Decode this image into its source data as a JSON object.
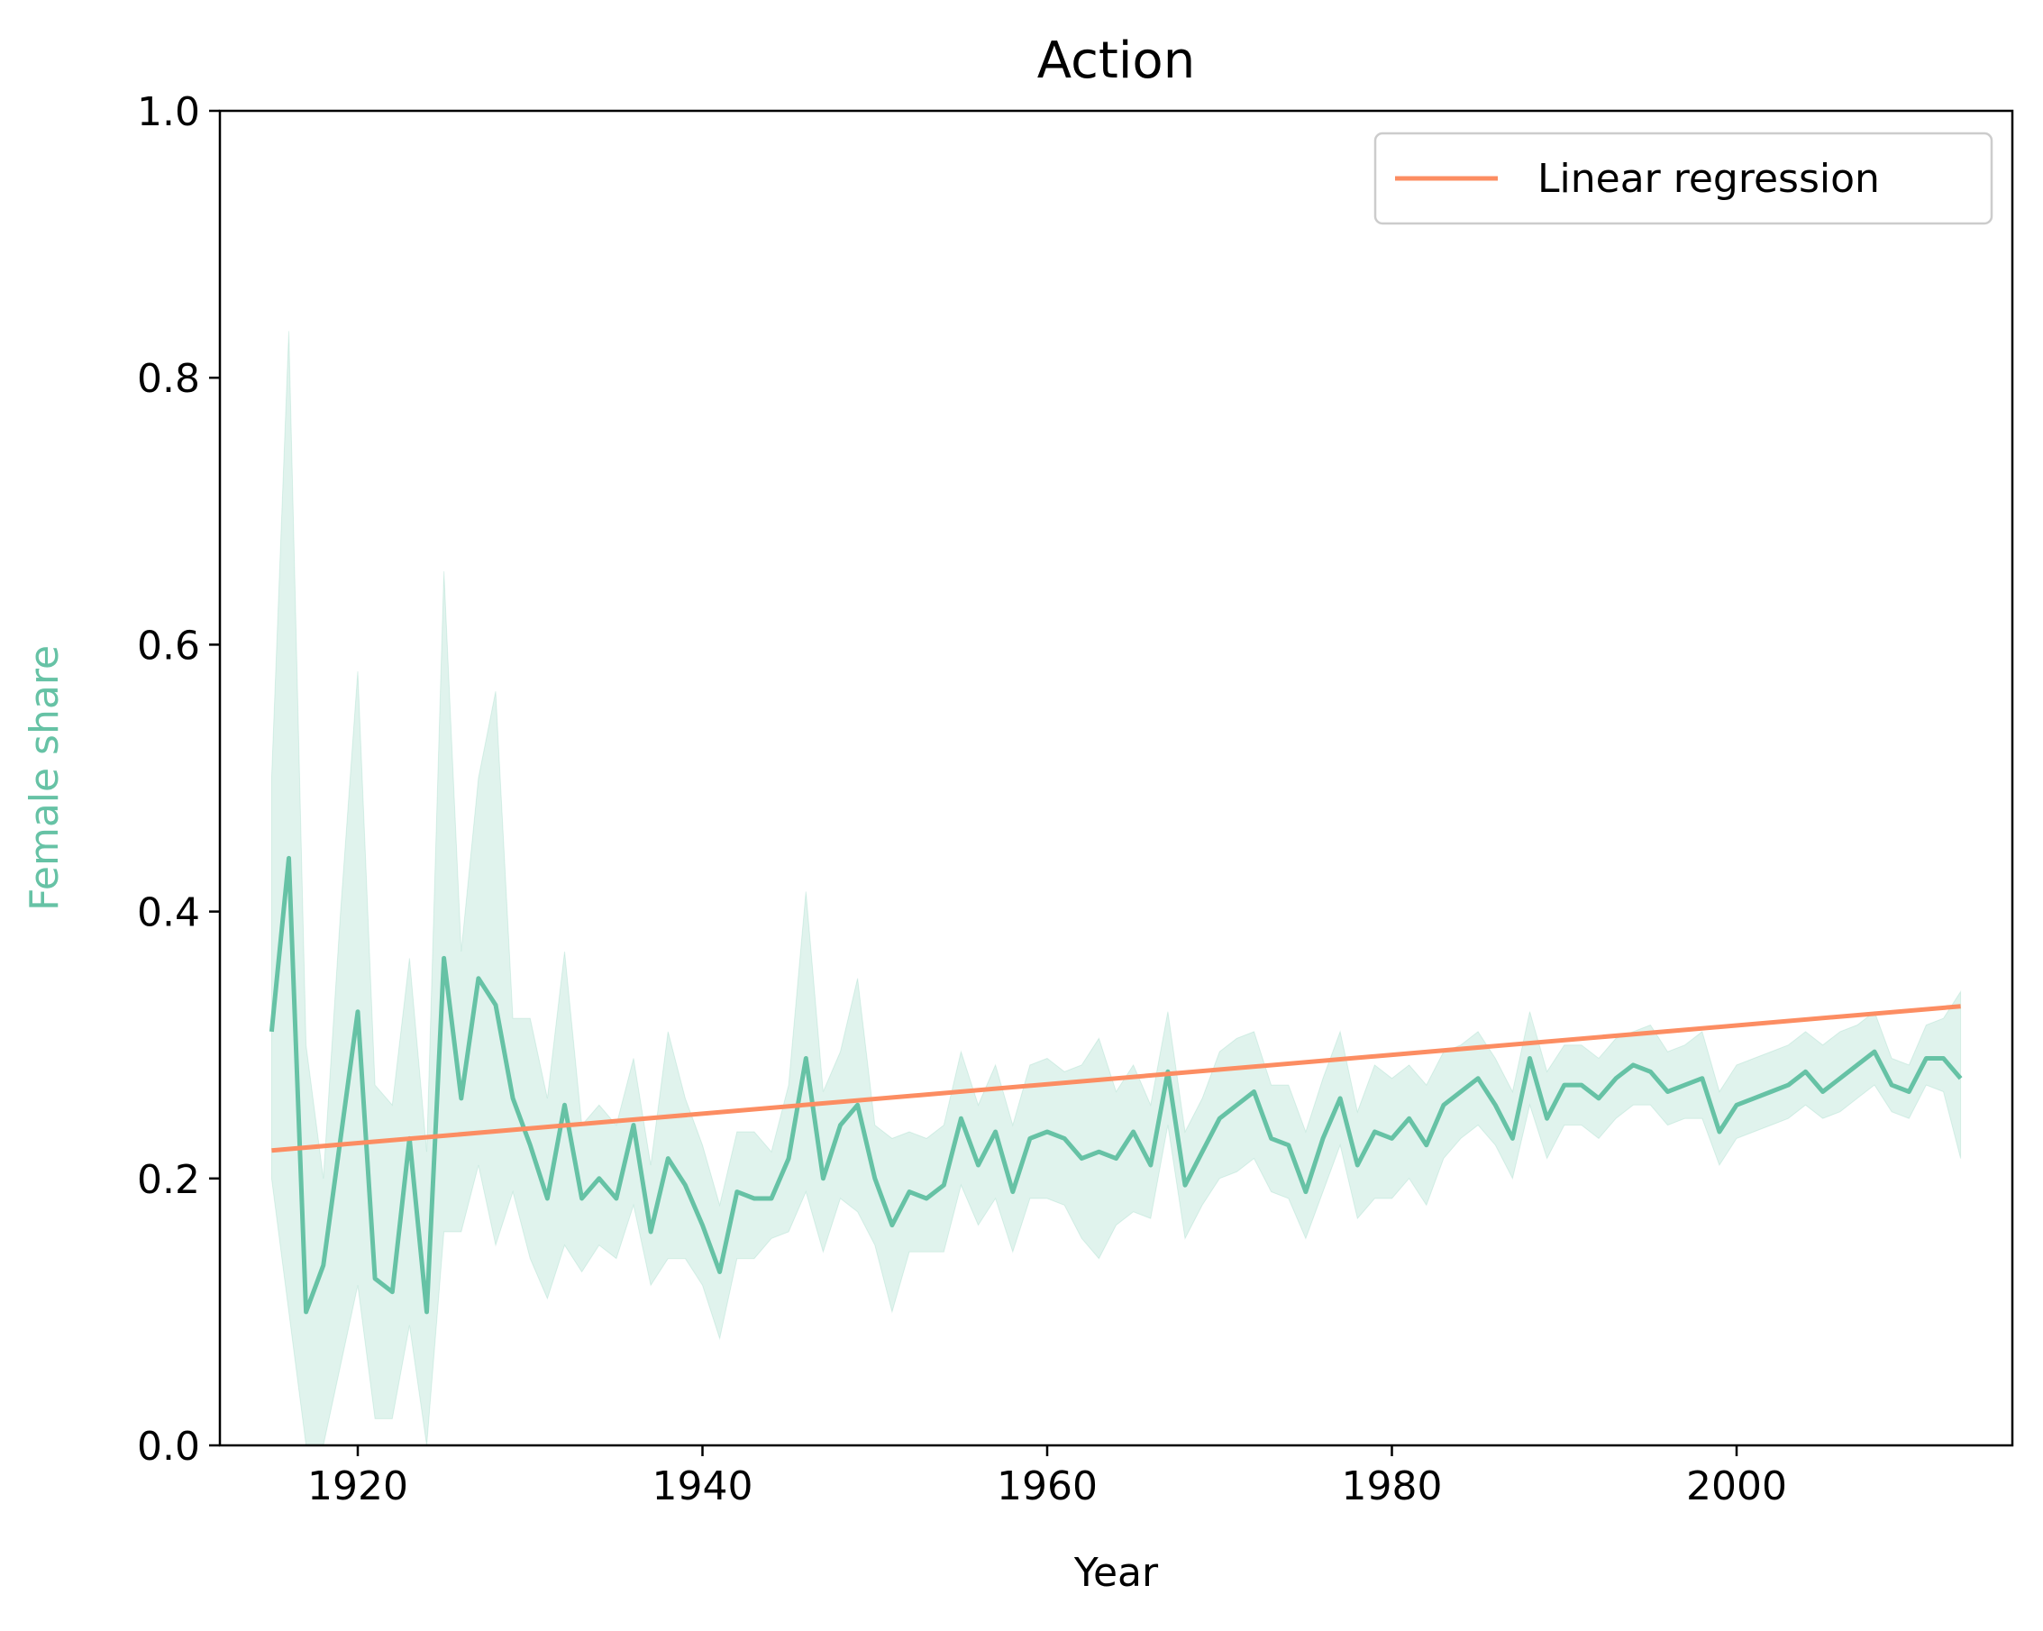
{
  "chart_data": {
    "type": "line",
    "title": "Action",
    "xlabel": "Year",
    "ylabel": "Female share",
    "xlim": [
      1912,
      2016
    ],
    "ylim": [
      0.0,
      1.0
    ],
    "grid": false,
    "legend_position": "top-right",
    "xticks": [
      1920,
      1940,
      1960,
      1980,
      2000
    ],
    "xtick_labels": [
      "1920",
      "1940",
      "1960",
      "1980",
      "2000"
    ],
    "yticks": [
      0.0,
      0.2,
      0.4,
      0.6,
      0.8,
      1.0
    ],
    "ytick_labels": [
      "0.0",
      "0.2",
      "0.4",
      "0.6",
      "0.8",
      "1.0"
    ],
    "x": [
      1915,
      1916,
      1917,
      1918,
      1919,
      1920,
      1921,
      1922,
      1923,
      1924,
      1925,
      1926,
      1927,
      1928,
      1929,
      1930,
      1931,
      1932,
      1933,
      1934,
      1935,
      1936,
      1937,
      1938,
      1939,
      1940,
      1941,
      1942,
      1943,
      1944,
      1945,
      1946,
      1947,
      1948,
      1949,
      1950,
      1951,
      1952,
      1953,
      1954,
      1955,
      1956,
      1957,
      1958,
      1959,
      1960,
      1961,
      1962,
      1963,
      1964,
      1965,
      1966,
      1967,
      1968,
      1969,
      1970,
      1971,
      1972,
      1973,
      1974,
      1975,
      1976,
      1977,
      1978,
      1979,
      1980,
      1981,
      1982,
      1983,
      1984,
      1985,
      1986,
      1987,
      1988,
      1989,
      1990,
      1991,
      1992,
      1993,
      1994,
      1995,
      1996,
      1997,
      1998,
      1999,
      2000,
      2001,
      2002,
      2003,
      2004,
      2005,
      2006,
      2007,
      2008,
      2009,
      2010,
      2011,
      2012,
      2013
    ],
    "series": [
      {
        "kind": "mean",
        "color": "#66c2a5",
        "values": [
          0.31,
          0.44,
          0.1,
          0.135,
          0.23,
          0.325,
          0.125,
          0.115,
          0.23,
          0.1,
          0.365,
          0.26,
          0.35,
          0.33,
          0.26,
          0.225,
          0.185,
          0.255,
          0.185,
          0.2,
          0.185,
          0.24,
          0.16,
          0.215,
          0.195,
          0.165,
          0.13,
          0.19,
          0.185,
          0.185,
          0.215,
          0.29,
          0.2,
          0.24,
          0.255,
          0.2,
          0.165,
          0.19,
          0.185,
          0.195,
          0.245,
          0.21,
          0.235,
          0.19,
          0.23,
          0.235,
          0.23,
          0.215,
          0.22,
          0.215,
          0.235,
          0.21,
          0.28,
          0.195,
          0.22,
          0.245,
          0.255,
          0.265,
          0.23,
          0.225,
          0.19,
          0.23,
          0.26,
          0.21,
          0.235,
          0.23,
          0.245,
          0.225,
          0.255,
          0.265,
          0.275,
          0.255,
          0.23,
          0.29,
          0.245,
          0.27,
          0.27,
          0.26,
          0.275,
          0.285,
          0.28,
          0.265,
          0.27,
          0.275,
          0.235,
          0.255,
          0.26,
          0.265,
          0.27,
          0.28,
          0.265,
          0.275,
          0.285,
          0.295,
          0.27,
          0.265,
          0.29,
          0.29,
          0.275
        ],
        "band_low": [
          0.2,
          0.1,
          0.0,
          0.0,
          0.06,
          0.12,
          0.02,
          0.02,
          0.09,
          0.0,
          0.16,
          0.16,
          0.21,
          0.15,
          0.19,
          0.14,
          0.11,
          0.15,
          0.13,
          0.15,
          0.14,
          0.18,
          0.12,
          0.14,
          0.14,
          0.12,
          0.08,
          0.14,
          0.14,
          0.155,
          0.16,
          0.19,
          0.145,
          0.185,
          0.175,
          0.15,
          0.1,
          0.145,
          0.145,
          0.145,
          0.195,
          0.165,
          0.185,
          0.145,
          0.185,
          0.185,
          0.18,
          0.155,
          0.14,
          0.165,
          0.175,
          0.17,
          0.24,
          0.155,
          0.18,
          0.2,
          0.205,
          0.215,
          0.19,
          0.185,
          0.155,
          0.19,
          0.225,
          0.17,
          0.185,
          0.185,
          0.2,
          0.18,
          0.215,
          0.23,
          0.24,
          0.225,
          0.2,
          0.255,
          0.215,
          0.24,
          0.24,
          0.23,
          0.245,
          0.255,
          0.255,
          0.24,
          0.245,
          0.245,
          0.21,
          0.23,
          0.235,
          0.24,
          0.245,
          0.255,
          0.245,
          0.25,
          0.26,
          0.27,
          0.25,
          0.245,
          0.27,
          0.265,
          0.215
        ],
        "band_high": [
          0.5,
          0.835,
          0.3,
          0.2,
          0.4,
          0.58,
          0.27,
          0.255,
          0.365,
          0.22,
          0.655,
          0.37,
          0.5,
          0.565,
          0.32,
          0.32,
          0.26,
          0.37,
          0.24,
          0.255,
          0.24,
          0.29,
          0.21,
          0.31,
          0.26,
          0.225,
          0.18,
          0.235,
          0.235,
          0.22,
          0.27,
          0.415,
          0.265,
          0.295,
          0.35,
          0.24,
          0.23,
          0.235,
          0.23,
          0.24,
          0.295,
          0.255,
          0.285,
          0.24,
          0.285,
          0.29,
          0.28,
          0.285,
          0.305,
          0.265,
          0.285,
          0.255,
          0.325,
          0.235,
          0.26,
          0.295,
          0.305,
          0.31,
          0.27,
          0.27,
          0.235,
          0.275,
          0.31,
          0.25,
          0.285,
          0.275,
          0.285,
          0.27,
          0.295,
          0.3,
          0.31,
          0.29,
          0.265,
          0.325,
          0.28,
          0.3,
          0.3,
          0.29,
          0.305,
          0.31,
          0.315,
          0.295,
          0.3,
          0.31,
          0.265,
          0.285,
          0.29,
          0.295,
          0.3,
          0.31,
          0.3,
          0.31,
          0.315,
          0.325,
          0.29,
          0.285,
          0.315,
          0.32,
          0.34
        ]
      },
      {
        "name": "Linear regression",
        "kind": "regression",
        "color": "#fc8d62",
        "x": [
          1915,
          2013
        ],
        "values": [
          0.221,
          0.329
        ]
      }
    ]
  }
}
